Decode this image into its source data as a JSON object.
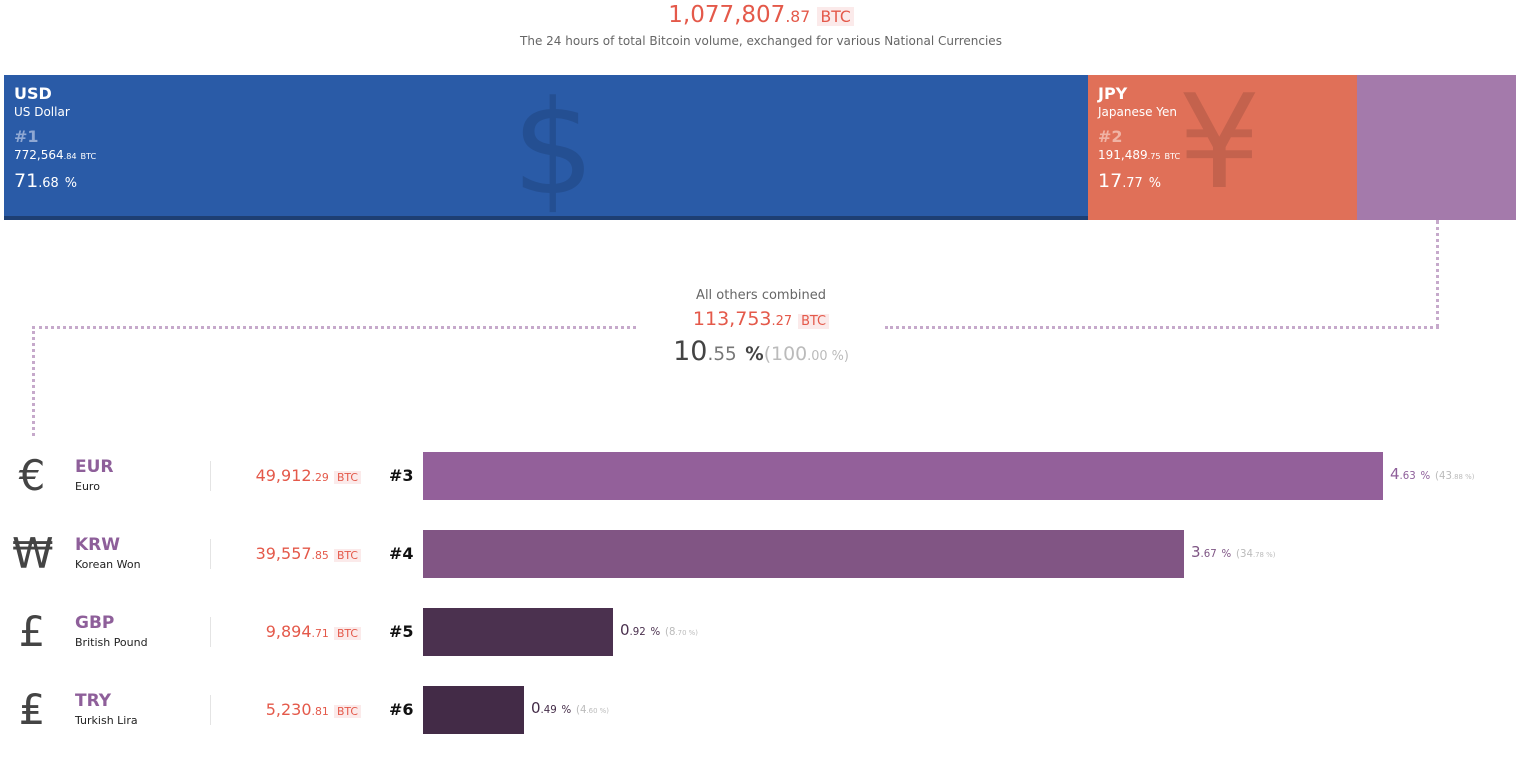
{
  "header": {
    "total_int": "1,077,807",
    "total_dec": ".87",
    "unit": "BTC",
    "subtitle": "The 24 hours of total Bitcoin volume, exchanged for various National Currencies"
  },
  "top": [
    {
      "code": "USD",
      "name": "US Dollar",
      "rank": "#1",
      "vol_int": "772,564",
      "vol_dec": ".84",
      "unit": "BTC",
      "pct_int": "71",
      "pct_dec": ".68",
      "pct_sign": "%",
      "symbol": "$",
      "color": "#2a5ba7"
    },
    {
      "code": "JPY",
      "name": "Japanese Yen",
      "rank": "#2",
      "vol_int": "191,489",
      "vol_dec": ".75",
      "unit": "BTC",
      "pct_int": "17",
      "pct_dec": ".77",
      "pct_sign": "%",
      "symbol": "¥",
      "color": "#e07058"
    }
  ],
  "others": {
    "label": "All others combined",
    "vol_int": "113,753",
    "vol_dec": ".27",
    "unit": "BTC",
    "pct_int": "10",
    "pct_dec": ".55",
    "pct_sign": "%",
    "share_open": "(100",
    "share_dec": ".00",
    "share_close": " %)",
    "color": "#a47aab"
  },
  "chart_data": {
    "type": "bar",
    "title": "All others combined",
    "categories": [
      "EUR",
      "KRW",
      "GBP",
      "TRY"
    ],
    "values": [
      43.88,
      34.78,
      8.7,
      4.6
    ],
    "total_pct": [
      4.63,
      3.67,
      0.92,
      0.49
    ],
    "btc": [
      49912.29,
      39557.85,
      9894.71,
      5230.81
    ],
    "xlim": [
      0,
      43.88
    ]
  },
  "rows": [
    {
      "symbol": "€",
      "code": "EUR",
      "name": "Euro",
      "vol_int": "49,912",
      "vol_dec": ".29",
      "unit": "BTC",
      "rank": "#3",
      "pct_int": "4",
      "pct_dec": ".63",
      "share_int": "(43",
      "share_dec": ".88",
      "color": "#93609a",
      "text_color": "#8e5f9a"
    },
    {
      "symbol": "₩",
      "code": "KRW",
      "name": "Korean Won",
      "vol_int": "39,557",
      "vol_dec": ".85",
      "unit": "BTC",
      "rank": "#4",
      "pct_int": "3",
      "pct_dec": ".67",
      "share_int": "(34",
      "share_dec": ".78",
      "color": "#815584",
      "text_color": "#7e5584"
    },
    {
      "symbol": "£",
      "code": "GBP",
      "name": "British Pound",
      "vol_int": "9,894",
      "vol_dec": ".71",
      "unit": "BTC",
      "rank": "#5",
      "pct_int": "0",
      "pct_dec": ".92",
      "share_int": "(8",
      "share_dec": ".70",
      "color": "#4b314f",
      "text_color": "#4b314f"
    },
    {
      "symbol": "₤",
      "code": "TRY",
      "name": "Turkish Lira",
      "vol_int": "5,230",
      "vol_dec": ".81",
      "unit": "BTC",
      "rank": "#6",
      "pct_int": "0",
      "pct_dec": ".49",
      "share_int": "(4",
      "share_dec": ".60",
      "color": "#432b47",
      "text_color": "#432b47"
    }
  ],
  "pct_sign": "%",
  "share_close": " %)"
}
